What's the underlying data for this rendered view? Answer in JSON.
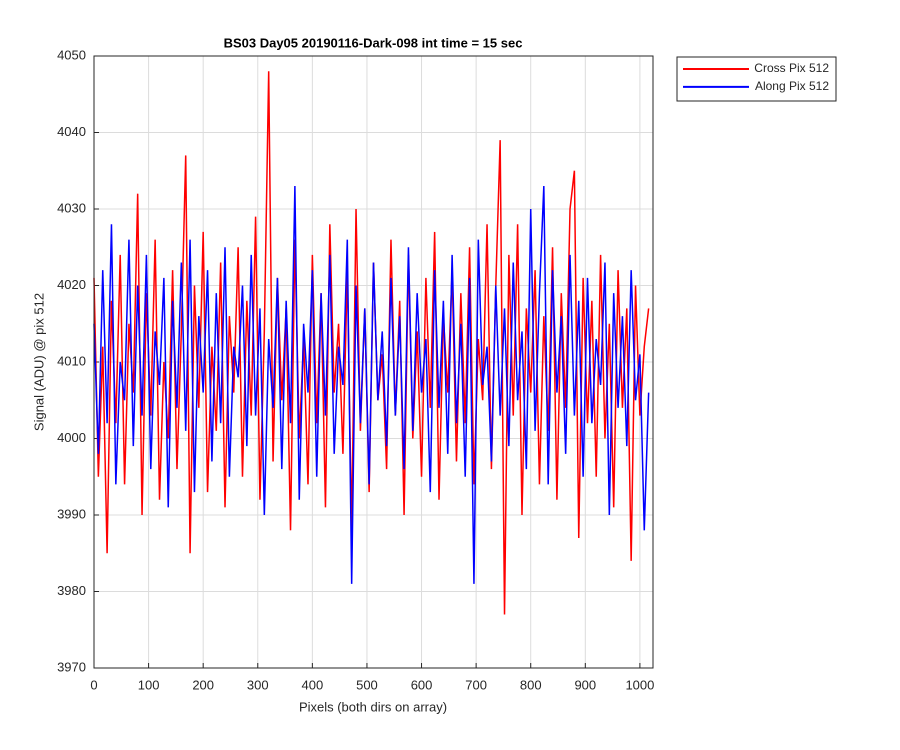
{
  "chart_data": {
    "type": "line",
    "title": "BS03 Day05 20190116-Dark-098 int time = 15 sec",
    "xlabel": "Pixels (both dirs on array)",
    "ylabel": "Signal (ADU) @ pix 512",
    "x": [
      0,
      8,
      16,
      24,
      32,
      40,
      48,
      56,
      64,
      72,
      80,
      88,
      96,
      104,
      112,
      120,
      128,
      136,
      144,
      152,
      160,
      168,
      176,
      184,
      192,
      200,
      208,
      216,
      224,
      232,
      240,
      248,
      256,
      264,
      272,
      280,
      288,
      296,
      304,
      312,
      320,
      328,
      336,
      344,
      352,
      360,
      368,
      376,
      384,
      392,
      400,
      408,
      416,
      424,
      432,
      440,
      448,
      456,
      464,
      472,
      480,
      488,
      496,
      504,
      512,
      520,
      528,
      536,
      544,
      552,
      560,
      568,
      576,
      584,
      592,
      600,
      608,
      616,
      624,
      632,
      640,
      648,
      656,
      664,
      672,
      680,
      688,
      696,
      704,
      712,
      720,
      728,
      736,
      744,
      752,
      760,
      768,
      776,
      784,
      792,
      800,
      808,
      816,
      824,
      832,
      840,
      848,
      856,
      864,
      872,
      880,
      888,
      896,
      904,
      912,
      920,
      928,
      936,
      944,
      952,
      960,
      968,
      976,
      984,
      992,
      1000,
      1008,
      1016
    ],
    "series": [
      {
        "name": "Cross Pix 512",
        "color": "#ff0000",
        "values": [
          4021,
          3995,
          4012,
          3985,
          4018,
          4002,
          4024,
          3994,
          4015,
          4006,
          4032,
          3990,
          4019,
          4003,
          4026,
          3992,
          4010,
          4000,
          4022,
          3996,
          4014,
          4037,
          3985,
          4020,
          4004,
          4027,
          3993,
          4012,
          4001,
          4023,
          3991,
          4016,
          4006,
          4025,
          3995,
          4018,
          4003,
          4029,
          3992,
          4014,
          4048,
          3997,
          4021,
          4005,
          4017,
          3988,
          4026,
          4000,
          4013,
          3994,
          4024,
          4002,
          4019,
          3991,
          4028,
          4006,
          4015,
          3998,
          4022,
          3988,
          4030,
          4001,
          4017,
          3993,
          4023,
          4005,
          4011,
          3996,
          4026,
          4003,
          4018,
          3990,
          4024,
          4000,
          4014,
          3995,
          4021,
          4004,
          4027,
          3992,
          4016,
          4006,
          4022,
          3997,
          4019,
          4002,
          4025,
          3994,
          4013,
          4005,
          4028,
          3996,
          4020,
          4039,
          3977,
          4024,
          4003,
          4028,
          3990,
          4017,
          4006,
          4022,
          3994,
          4016,
          4001,
          4025,
          3992,
          4019,
          4004,
          4030,
          4035,
          3987,
          4021,
          4002,
          4018,
          3995,
          4024,
          4000,
          4015,
          3991,
          4022,
          4004,
          4017,
          3984,
          4020,
          4003,
          4012,
          4017
        ]
      },
      {
        "name": "Along Pix 512",
        "color": "#0000ff",
        "values": [
          4015,
          3998,
          4022,
          4002,
          4028,
          3994,
          4010,
          4005,
          4026,
          3999,
          4020,
          4003,
          4024,
          3996,
          4014,
          4007,
          4021,
          3991,
          4018,
          4004,
          4023,
          4001,
          4026,
          3993,
          4016,
          4006,
          4022,
          3997,
          4019,
          4002,
          4025,
          3995,
          4012,
          4008,
          4020,
          3999,
          4024,
          4003,
          4017,
          3990,
          4013,
          4004,
          4021,
          3996,
          4018,
          4002,
          4033,
          3992,
          4015,
          4006,
          4022,
          3995,
          4019,
          4003,
          4024,
          3998,
          4012,
          4007,
          4026,
          3981,
          4020,
          4002,
          4017,
          3994,
          4023,
          4005,
          4014,
          3999,
          4021,
          4003,
          4016,
          3996,
          4025,
          4001,
          4019,
          4006,
          4013,
          3993,
          4022,
          4004,
          4018,
          3998,
          4024,
          4002,
          4015,
          3995,
          4021,
          3981,
          4026,
          4007,
          4012,
          3997,
          4020,
          4003,
          4017,
          3999,
          4023,
          4005,
          4014,
          3996,
          4030,
          4001,
          4019,
          4033,
          3994,
          4022,
          4006,
          4016,
          3998,
          4024,
          4003,
          4018,
          3995,
          4021,
          4002,
          4013,
          4007,
          4023,
          3990,
          4019,
          4004,
          4016,
          3999,
          4022,
          4005,
          4011,
          3988,
          4006
        ]
      }
    ],
    "xlim": [
      0,
      1024
    ],
    "xticks": [
      0,
      100,
      200,
      300,
      400,
      500,
      600,
      700,
      800,
      900,
      1000
    ],
    "ylim": [
      3970,
      4050
    ],
    "yticks": [
      3970,
      3980,
      3990,
      4000,
      4010,
      4020,
      4030,
      4040,
      4050
    ],
    "grid": true,
    "legend_location": "northeastoutside"
  }
}
